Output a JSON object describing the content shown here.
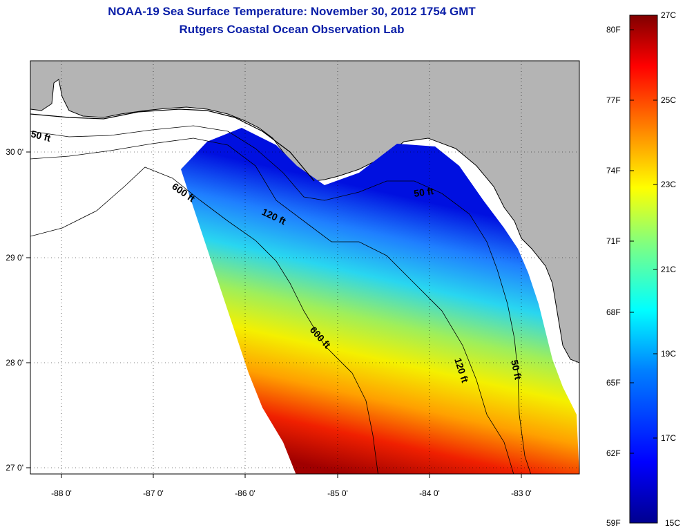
{
  "title": {
    "line1": "NOAA-19 Sea Surface Temperature:  November 30, 2012 1754 GMT",
    "line2": "Rutgers Coastal Ocean Observation Lab"
  },
  "map": {
    "lon_labels": [
      "-88 0'",
      "-87 0'",
      "-86 0'",
      "-85 0'",
      "-84 0'",
      "-83 0'"
    ],
    "lat_labels": [
      "30 0'",
      "29 0'",
      "28 0'",
      "27 0'"
    ],
    "depth_contours": [
      "50 ft",
      "600 ft",
      "120 ft",
      "50 ft",
      "600 ft",
      "120 ft",
      "50 ft"
    ],
    "land_color": "#b4b4b4",
    "no_data_color": "#ffffff"
  },
  "colorbar": {
    "fahrenheit_labels": [
      "80F",
      "77F",
      "74F",
      "71F",
      "68F",
      "65F",
      "62F",
      "59F"
    ],
    "celsius_labels": [
      "27C",
      "25C",
      "23C",
      "21C",
      "19C",
      "17C",
      "15C"
    ],
    "gradient": [
      "#00008f",
      "#0000ff",
      "#0080ff",
      "#00ffff",
      "#80ff80",
      "#ffff00",
      "#ff8000",
      "#ff0000",
      "#800000"
    ]
  }
}
